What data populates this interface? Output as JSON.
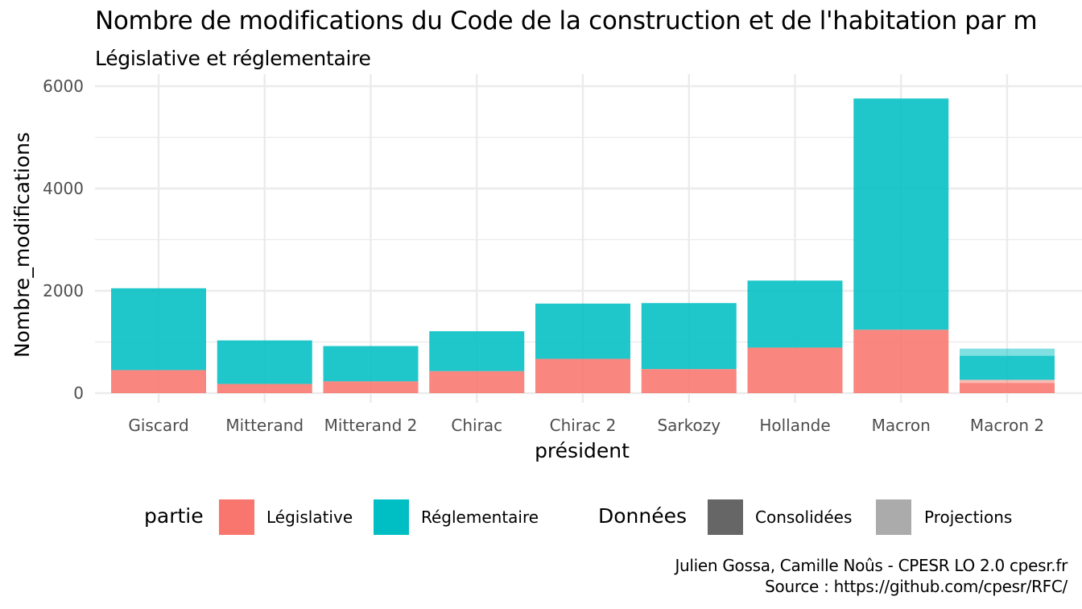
{
  "title": "Nombre de modifications du Code de la construction et de l'habitation par m",
  "subtitle": "Législative et réglementaire",
  "caption": {
    "line1": "Julien Gossa, Camille Noûs - CPESR LO 2.0 cpesr.fr",
    "line2": "Source : https://github.com/cpesr/RFC/"
  },
  "legend": {
    "partie_title": "partie",
    "partie_items": [
      "Législative",
      "Réglementaire"
    ],
    "donnees_title": "Données",
    "donnees_items": [
      "Consolidées",
      "Projections"
    ]
  },
  "colors": {
    "legislative": "#F8766D",
    "reglementaire": "#00BFC4",
    "consolidees": "#666666",
    "projections": "#ABABAB"
  },
  "chart_data": {
    "type": "bar",
    "stacked": true,
    "xlabel": "président",
    "ylabel": "Nombre_modifications",
    "ylim": [
      0,
      6000
    ],
    "yticks": [
      0,
      2000,
      4000,
      6000
    ],
    "grid": true,
    "legend_position": "bottom",
    "categories": [
      "Giscard",
      "Mitterand",
      "Mitterand 2",
      "Chirac",
      "Chirac 2",
      "Sarkozy",
      "Hollande",
      "Macron",
      "Macron 2"
    ],
    "series": [
      {
        "name": "Législative",
        "donnees": "Consolidées",
        "values": [
          450,
          180,
          230,
          430,
          670,
          470,
          890,
          1240,
          200
        ]
      },
      {
        "name": "Législative",
        "donnees": "Projections",
        "values": [
          0,
          0,
          0,
          0,
          0,
          0,
          0,
          0,
          60
        ]
      },
      {
        "name": "Réglementaire",
        "donnees": "Consolidées",
        "values": [
          1600,
          850,
          690,
          780,
          1080,
          1290,
          1310,
          4520,
          470
        ]
      },
      {
        "name": "Réglementaire",
        "donnees": "Projections",
        "values": [
          0,
          0,
          0,
          0,
          0,
          0,
          0,
          0,
          140
        ]
      }
    ]
  }
}
